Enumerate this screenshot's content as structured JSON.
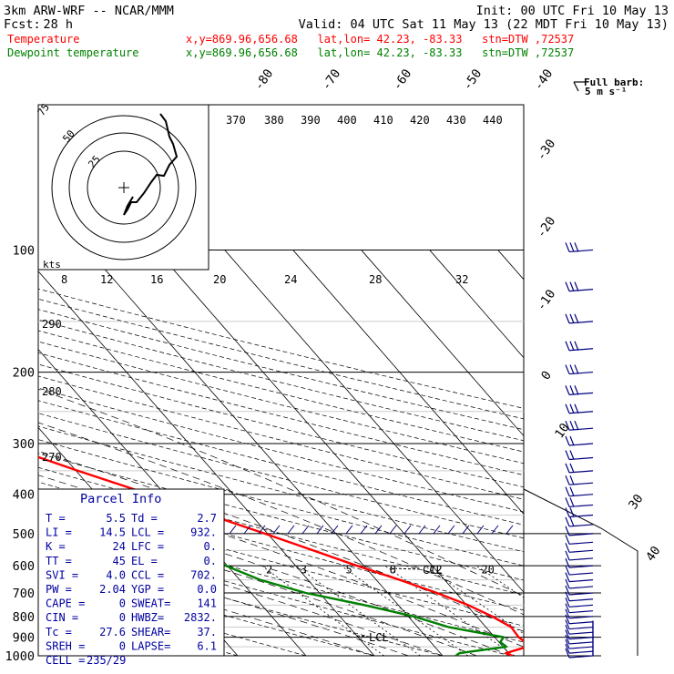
{
  "header": {
    "model": "3km ARW-WRF -- NCAR/MMM",
    "init": "Init: 00 UTC Fri 10 May 13",
    "fcst_label": "Fcst:",
    "fcst_value": "28 h",
    "valid": "Valid: 04 UTC Sat 11 May 13 (22 MDT Fri 10 May 13)",
    "temp_label": "Temperature",
    "dew_label": "Dewpoint temperature",
    "location": "x,y=869.96,656.68   lat,lon= 42.23, -83.33   stn=DTW ,72537",
    "colors": {
      "temperature": "#ff0000",
      "dewpoint": "#008000",
      "parcel_text": "#0000a0",
      "barb": "#00007f"
    }
  },
  "barb_legend": {
    "title": "Full barb:",
    "value": "5 m s⁻¹"
  },
  "hodograph": {
    "units": "kts",
    "ring_labels": [
      "75",
      "50",
      "25"
    ],
    "speed_ticks": [
      "8",
      "12",
      "16",
      "20",
      "24",
      "28",
      "32"
    ]
  },
  "theta_e_labels": [
    "370",
    "380",
    "390",
    "400",
    "410",
    "420",
    "430",
    "440"
  ],
  "theta_e_side_labels": [
    "290",
    "280",
    "270"
  ],
  "mixing_ratio_labels": [
    "2",
    "3",
    "5",
    "8",
    "12",
    "20"
  ],
  "cloud_labels": {
    "ccl": "CCL",
    "lcl": "LCL"
  },
  "parcel": {
    "title": "Parcel Info",
    "rows": [
      [
        "T  =",
        "5.5",
        "Td =",
        "2.7"
      ],
      [
        "LI =",
        "14.5",
        "LCL =",
        "932."
      ],
      [
        "K  =",
        "24",
        "LFC =",
        "0."
      ],
      [
        "TT =",
        "45",
        "EL  =",
        "0."
      ],
      [
        "SVI =",
        "4.0",
        "CCL =",
        "702."
      ],
      [
        "PW =",
        "2.04",
        "YGP =",
        "0.0"
      ],
      [
        "CAPE =",
        "0",
        "SWEAT=",
        "141"
      ],
      [
        "CIN =",
        "0",
        "HWBZ=",
        "2832."
      ],
      [
        "Tc =",
        "27.6",
        "SHEAR=",
        "37."
      ],
      [
        "SREH =",
        "0",
        "LAPSE=",
        "6.1"
      ],
      [
        "CELL =",
        "235/29",
        "",
        ""
      ]
    ]
  },
  "chart_data": {
    "type": "line",
    "xlabel": "",
    "ylabel": "",
    "pressure_levels": [
      100,
      200,
      300,
      400,
      500,
      600,
      700,
      800,
      900,
      1000
    ],
    "temperature_ticks": [
      -80,
      -70,
      -60,
      -50,
      -40,
      -30,
      -20,
      -10,
      0,
      10,
      20,
      30,
      40
    ],
    "ylim": [
      100,
      1000
    ],
    "y_scale": "log (pressure, inverted)",
    "grid": true,
    "series": [
      {
        "name": "Temperature",
        "points": [
          [
            1000,
            10.2
          ],
          [
            985,
            9.6
          ],
          [
            950,
            13.5
          ],
          [
            925,
            13.8
          ],
          [
            900,
            13.5
          ],
          [
            850,
            13.7
          ],
          [
            800,
            12.3
          ],
          [
            750,
            10.2
          ],
          [
            700,
            7.2
          ],
          [
            650,
            3.4
          ],
          [
            600,
            -1.0
          ],
          [
            550,
            -5.5
          ],
          [
            500,
            -10.4
          ],
          [
            450,
            -16.0
          ],
          [
            400,
            -22.3
          ],
          [
            350,
            -29.7
          ],
          [
            300,
            -37.8
          ],
          [
            250,
            -47.7
          ],
          [
            225,
            -52.8
          ],
          [
            200,
            -56.9
          ],
          [
            175,
            -58.8
          ],
          [
            150,
            -58.3
          ],
          [
            125,
            -56.6
          ],
          [
            110,
            -55.5
          ],
          [
            100,
            -54.2
          ]
        ]
      },
      {
        "name": "Dewpoint temperature",
        "points": [
          [
            1000,
            1.9
          ],
          [
            985,
            2.8
          ],
          [
            950,
            10.5
          ],
          [
            925,
            10.2
          ],
          [
            900,
            11.3
          ],
          [
            850,
            4.6
          ],
          [
            800,
            0.8
          ],
          [
            750,
            -5.0
          ],
          [
            700,
            -12.0
          ],
          [
            650,
            -17.0
          ],
          [
            600,
            -20.2
          ],
          [
            550,
            -25.4
          ],
          [
            500,
            -29.5
          ],
          [
            450,
            -37.5
          ],
          [
            400,
            -39.8
          ],
          [
            350,
            -47.0
          ],
          [
            300,
            -60.2
          ],
          [
            250,
            -62.0
          ],
          [
            225,
            -58.5
          ],
          [
            200,
            -57.8
          ],
          [
            175,
            -58.4
          ],
          [
            150,
            -61.9
          ],
          [
            125,
            -65.8
          ],
          [
            110,
            -69.4
          ],
          [
            100,
            -70.4
          ]
        ]
      }
    ]
  }
}
